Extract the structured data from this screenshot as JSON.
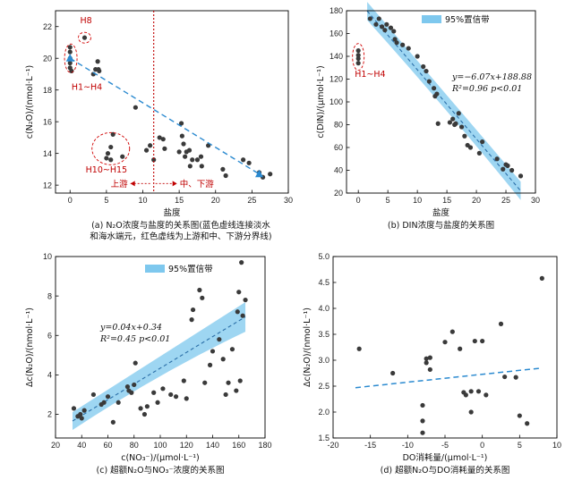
{
  "chart_data": [
    {
      "id": "a",
      "type": "scatter",
      "caption": [
        "(a) N₂O浓度与盐度的关系图(蓝色虚线连接淡水",
        "和海水端元，红色虚线为上游和中、下游分界线)"
      ],
      "xlabel": "盐度",
      "ylabel": "c(N₂O)/(nmol·L⁻¹)",
      "xlim": [
        -2,
        30
      ],
      "ylim": [
        11.5,
        23
      ],
      "xticks": [
        0,
        5,
        10,
        15,
        20,
        25,
        30
      ],
      "yticks": [
        12,
        14,
        16,
        18,
        20,
        22
      ],
      "points": [
        [
          0,
          20.7
        ],
        [
          0,
          20.4
        ],
        [
          0,
          20.0
        ],
        [
          0,
          19.7
        ],
        [
          0,
          19.4
        ],
        [
          0.2,
          19.2
        ],
        [
          2.0,
          21.3
        ],
        [
          3.5,
          19.3
        ],
        [
          3.8,
          19.8
        ],
        [
          3.9,
          19.3
        ],
        [
          4.0,
          19.2
        ],
        [
          3.2,
          19.0
        ],
        [
          5.0,
          13.7
        ],
        [
          5.2,
          14.0
        ],
        [
          5.6,
          14.4
        ],
        [
          5.9,
          15.2
        ],
        [
          5.6,
          13.6
        ],
        [
          7.2,
          13.8
        ],
        [
          9.0,
          16.9
        ],
        [
          10.5,
          14.2
        ],
        [
          11.0,
          14.5
        ],
        [
          11.5,
          13.6
        ],
        [
          12.3,
          15.0
        ],
        [
          12.8,
          14.9
        ],
        [
          13.0,
          14.3
        ],
        [
          15.0,
          14.1
        ],
        [
          15.3,
          15.9
        ],
        [
          15.4,
          15.1
        ],
        [
          15.6,
          14.6
        ],
        [
          15.8,
          13.8
        ],
        [
          16.0,
          14.1
        ],
        [
          16.4,
          14.2
        ],
        [
          16.8,
          13.6
        ],
        [
          16.5,
          13.2
        ],
        [
          17.5,
          13.6
        ],
        [
          18.0,
          13.8
        ],
        [
          18.1,
          13.2
        ],
        [
          19.0,
          14.5
        ],
        [
          21.0,
          13.0
        ],
        [
          21.4,
          12.6
        ],
        [
          23.8,
          13.6
        ],
        [
          24.6,
          13.4
        ],
        [
          26.0,
          12.8
        ],
        [
          26.5,
          12.5
        ],
        [
          27.5,
          12.7
        ]
      ],
      "endmembers": [
        [
          0,
          20.0
        ],
        [
          26,
          12.7
        ]
      ],
      "mixing_line": [
        [
          0,
          20.0
        ],
        [
          26,
          12.7
        ]
      ],
      "divider_x": 11.5,
      "annotations": {
        "h8": "H8",
        "h1_h4": "H1~H4",
        "h10_h15": "H10~H15",
        "upstream": "上游",
        "mid_down": "中、下游"
      }
    },
    {
      "id": "b",
      "type": "scatter",
      "caption": [
        "(b) DIN浓度与盐度的关系图"
      ],
      "xlabel": "盐度",
      "ylabel": "c(DIN)/(μmol·L⁻¹)",
      "xlim": [
        -2,
        30
      ],
      "ylim": [
        20,
        180
      ],
      "xticks": [
        0,
        5,
        10,
        15,
        20,
        25,
        30
      ],
      "yticks": [
        20,
        40,
        60,
        80,
        100,
        120,
        140,
        160,
        180
      ],
      "points": [
        [
          0,
          145
        ],
        [
          0,
          141
        ],
        [
          0,
          138
        ],
        [
          0,
          134
        ],
        [
          2.0,
          173
        ],
        [
          3.0,
          168
        ],
        [
          3.5,
          173
        ],
        [
          4.0,
          166
        ],
        [
          4.5,
          163
        ],
        [
          4.8,
          168
        ],
        [
          5.5,
          165
        ],
        [
          6.0,
          162
        ],
        [
          6.2,
          155
        ],
        [
          6.5,
          152
        ],
        [
          7.5,
          150
        ],
        [
          8.5,
          147
        ],
        [
          10.0,
          140
        ],
        [
          11.0,
          131
        ],
        [
          11.5,
          127
        ],
        [
          12.0,
          118
        ],
        [
          12.8,
          112
        ],
        [
          13.0,
          105
        ],
        [
          13.3,
          107
        ],
        [
          13.5,
          81
        ],
        [
          15.5,
          82
        ],
        [
          16.0,
          85
        ],
        [
          16.3,
          80
        ],
        [
          16.5,
          81
        ],
        [
          17.0,
          90
        ],
        [
          17.5,
          78
        ],
        [
          18.0,
          70
        ],
        [
          18.5,
          62
        ],
        [
          19.0,
          60
        ],
        [
          20.5,
          55
        ],
        [
          21.0,
          65
        ],
        [
          23.5,
          50
        ],
        [
          24.5,
          41
        ],
        [
          25.0,
          45
        ],
        [
          25.3,
          44
        ],
        [
          26.0,
          40
        ],
        [
          27.5,
          35
        ]
      ],
      "fit": {
        "slope": -6.07,
        "intercept": 188.88,
        "x_range": [
          1.5,
          27.5
        ],
        "ci_halfwidth": [
          8,
          4,
          8
        ]
      },
      "equation": "y=−6.07x+188.88",
      "r2_text": "R²=0.96   p<0.01",
      "legend": "95%置信带",
      "annotations": {
        "h1_h4": "H1~H4"
      }
    },
    {
      "id": "c",
      "type": "scatter",
      "caption": [
        "(c) 超额N₂O与NO₃⁻浓度的关系图"
      ],
      "xlabel": "c(NO₃⁻)/(μmol·L⁻¹)",
      "ylabel": "Δc(N₂O)/(nmol·L⁻¹)",
      "xlim": [
        20,
        180
      ],
      "ylim": [
        0.8,
        10
      ],
      "xticks": [
        20,
        40,
        60,
        80,
        100,
        120,
        140,
        160,
        180
      ],
      "yticks": [
        2,
        4,
        6,
        8,
        10
      ],
      "points": [
        [
          34,
          2.3
        ],
        [
          37,
          1.9
        ],
        [
          39,
          2.0
        ],
        [
          40,
          1.8
        ],
        [
          42,
          2.2
        ],
        [
          49,
          3.0
        ],
        [
          55,
          2.5
        ],
        [
          57,
          2.6
        ],
        [
          60,
          2.9
        ],
        [
          64,
          1.6
        ],
        [
          68,
          2.6
        ],
        [
          75,
          3.4
        ],
        [
          76,
          3.2
        ],
        [
          78,
          3.1
        ],
        [
          80,
          3.5
        ],
        [
          81,
          4.6
        ],
        [
          85,
          2.3
        ],
        [
          88,
          2.0
        ],
        [
          90,
          2.4
        ],
        [
          95,
          3.1
        ],
        [
          98,
          2.6
        ],
        [
          102,
          3.3
        ],
        [
          108,
          3.0
        ],
        [
          112,
          2.9
        ],
        [
          118,
          3.7
        ],
        [
          120,
          2.8
        ],
        [
          124,
          6.8
        ],
        [
          125,
          7.3
        ],
        [
          130,
          8.3
        ],
        [
          132,
          7.9
        ],
        [
          134,
          3.6
        ],
        [
          138,
          4.5
        ],
        [
          140,
          5.2
        ],
        [
          145,
          5.8
        ],
        [
          148,
          4.8
        ],
        [
          150,
          3.0
        ],
        [
          152,
          3.6
        ],
        [
          155,
          5.3
        ],
        [
          158,
          3.2
        ],
        [
          159,
          7.2
        ],
        [
          160,
          8.2
        ],
        [
          161,
          3.7
        ],
        [
          162,
          9.7
        ],
        [
          163,
          7.0
        ],
        [
          165,
          7.8
        ]
      ],
      "fit": {
        "slope": 0.04,
        "intercept": 0.34,
        "x_range": [
          33,
          165
        ],
        "ci_halfwidth": [
          0.45,
          0.2,
          0.75
        ]
      },
      "equation": "y=0.04x+0.34",
      "r2_text": "R²=0.45   p<0.01",
      "legend": "95%置信带"
    },
    {
      "id": "d",
      "type": "scatter",
      "caption": [
        "(d) 超额N₂O与DO消耗量的关系图"
      ],
      "xlabel": "DO消耗量/(μmol·L⁻¹)",
      "ylabel": "Δc(N₂O)/(nmol·L⁻¹)",
      "xlim": [
        -20,
        10
      ],
      "ylim": [
        1.5,
        5
      ],
      "xticks": [
        -20,
        -15,
        -10,
        -5,
        0,
        5,
        10
      ],
      "yticks": [
        1.5,
        2.0,
        2.5,
        3.0,
        3.5,
        4.0,
        4.5,
        5.0
      ],
      "points": [
        [
          -16.5,
          3.22
        ],
        [
          -12,
          2.75
        ],
        [
          -8,
          1.6
        ],
        [
          -8,
          1.83
        ],
        [
          -8,
          2.13
        ],
        [
          -7.5,
          2.95
        ],
        [
          -7,
          3.05
        ],
        [
          -7.5,
          3.03
        ],
        [
          -7,
          2.82
        ],
        [
          -5,
          3.35
        ],
        [
          -4,
          3.55
        ],
        [
          -3,
          3.22
        ],
        [
          -2.5,
          2.38
        ],
        [
          -2.2,
          2.33
        ],
        [
          -1.5,
          2.4
        ],
        [
          -1.0,
          3.37
        ],
        [
          -0.5,
          2.4
        ],
        [
          0.0,
          3.37
        ],
        [
          -1.5,
          2.0
        ],
        [
          0.5,
          2.33
        ],
        [
          2.5,
          3.7
        ],
        [
          3.0,
          2.68
        ],
        [
          4.5,
          2.67
        ],
        [
          5.0,
          1.93
        ],
        [
          6.0,
          1.78
        ],
        [
          8.0,
          4.58
        ]
      ],
      "trend": [
        [
          -17,
          2.47
        ],
        [
          8,
          2.85
        ]
      ]
    }
  ]
}
